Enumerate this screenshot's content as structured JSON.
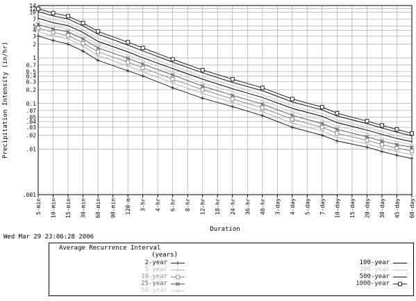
{
  "timestamp": "Wed Mar 29 23:06:28 2006",
  "legend": {
    "title": "Average Recurrence Interval",
    "subtitle": "(years)"
  },
  "chart_data": {
    "type": "line",
    "xlabel": "Duration",
    "ylabel": "Precipitation Intensity (in/hr)",
    "y_scale": "log",
    "ylim": [
      0.001,
      14
    ],
    "grid": true,
    "y_ticks": [
      "14",
      "12",
      "10",
      "7",
      "5",
      "4",
      "3",
      "2",
      "1",
      "0.7",
      "0.5",
      "0.4",
      "0.3",
      "0.2",
      "0.1",
      ".07",
      ".05",
      ".04",
      ".03",
      ".02",
      ".01",
      ".001"
    ],
    "x_ticks": [
      "5-min",
      "10-min",
      "15-min",
      "30-min",
      "60-min",
      "90-min",
      "120-m",
      "3-hr",
      "4-hr",
      "6-hr",
      "8-hr",
      "12-hr",
      "18-hr",
      "24-hr",
      "36-hr",
      "48-hr",
      "3-day",
      "4-day",
      "5-day",
      "7-day",
      "10-day",
      "15-day",
      "20-day",
      "30-day",
      "45-day",
      "60-day"
    ],
    "marker_x": [
      "5-min",
      "10-min",
      "15-min",
      "30-min",
      "60-min",
      "120-m",
      "3-hr",
      "6-hr",
      "12-hr",
      "24-hr",
      "48-hr",
      "4-day",
      "7-day",
      "10-day",
      "20-day",
      "30-day",
      "45-day",
      "60-day"
    ],
    "series": [
      {
        "name": "2-year",
        "color": "#222222",
        "marker": "plus",
        "values": [
          3.0,
          2.4,
          2.0,
          1.4,
          0.88,
          0.52,
          0.4,
          0.22,
          0.13,
          0.085,
          0.054,
          0.03,
          0.02,
          0.015,
          0.011,
          0.0088,
          0.0073,
          0.0062
        ]
      },
      {
        "name": "5-year",
        "color": "#b4b4b4",
        "marker": "plus",
        "values": [
          3.8,
          3.0,
          2.6,
          1.8,
          1.12,
          0.66,
          0.5,
          0.28,
          0.165,
          0.105,
          0.066,
          0.037,
          0.025,
          0.018,
          0.013,
          0.0105,
          0.0088,
          0.0075
        ]
      },
      {
        "name": "10-year",
        "color": "#8c8c8c",
        "marker": "square",
        "values": [
          4.5,
          3.6,
          3.1,
          2.1,
          1.35,
          0.8,
          0.6,
          0.34,
          0.2,
          0.125,
          0.08,
          0.045,
          0.03,
          0.022,
          0.0155,
          0.0125,
          0.0105,
          0.009
        ]
      },
      {
        "name": "25-year",
        "color": "#5a5a5a",
        "marker": "x",
        "values": [
          5.4,
          4.3,
          3.7,
          2.6,
          1.65,
          0.98,
          0.73,
          0.42,
          0.24,
          0.15,
          0.097,
          0.055,
          0.036,
          0.027,
          0.0185,
          0.015,
          0.0125,
          0.011
        ]
      },
      {
        "name": "50-year",
        "color": "#c8c8c8",
        "marker": "plus",
        "values": [
          6.3,
          5.0,
          4.3,
          3.0,
          1.95,
          1.15,
          0.86,
          0.49,
          0.28,
          0.18,
          0.115,
          0.065,
          0.043,
          0.032,
          0.022,
          0.0175,
          0.0145,
          0.0125
        ]
      },
      {
        "name": "100-year",
        "color": "#000000",
        "marker": "none",
        "values": [
          7.4,
          5.9,
          5.1,
          3.6,
          2.3,
          1.35,
          1.0,
          0.58,
          0.34,
          0.21,
          0.135,
          0.078,
          0.052,
          0.038,
          0.026,
          0.021,
          0.017,
          0.0145
        ]
      },
      {
        "name": "200-year",
        "color": "#c0c0c0",
        "marker": "none",
        "values": [
          8.6,
          6.9,
          5.9,
          4.1,
          2.7,
          1.58,
          1.17,
          0.67,
          0.39,
          0.245,
          0.158,
          0.09,
          0.06,
          0.044,
          0.03,
          0.024,
          0.0195,
          0.0165
        ]
      },
      {
        "name": "500-year",
        "color": "#111111",
        "marker": "none",
        "values": [
          10.3,
          8.3,
          7.1,
          5.0,
          3.3,
          1.9,
          1.42,
          0.8,
          0.47,
          0.29,
          0.19,
          0.108,
          0.072,
          0.053,
          0.036,
          0.029,
          0.0235,
          0.0195
        ]
      },
      {
        "name": "1000-year",
        "color": "#222222",
        "marker": "square",
        "values": [
          11.9,
          9.6,
          8.2,
          5.8,
          3.8,
          2.2,
          1.65,
          0.93,
          0.54,
          0.34,
          0.22,
          0.125,
          0.083,
          0.061,
          0.041,
          0.033,
          0.027,
          0.022
        ]
      }
    ]
  }
}
